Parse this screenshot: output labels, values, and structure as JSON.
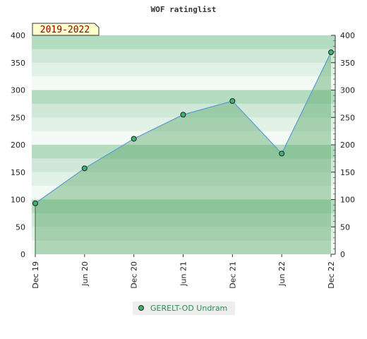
{
  "chart_data": {
    "type": "area",
    "title": "WOF ratinglist",
    "period_badge": "2019-2022",
    "categories": [
      "Dec 19",
      "Jun 20",
      "Dec 20",
      "Jun 21",
      "Dec 21",
      "Jun 22",
      "Dec 22"
    ],
    "series": [
      {
        "name": "GERELT-OD Undram",
        "values": [
          93,
          157,
          211,
          255,
          280,
          184,
          369
        ]
      }
    ],
    "ylim": [
      0,
      400
    ],
    "yticks": [
      0,
      50,
      100,
      150,
      200,
      250,
      300,
      350,
      400
    ],
    "y_axis_left": true,
    "y_axis_right": true,
    "legend_position": "bottom-center",
    "colors": {
      "area_fill": "#5aa86a",
      "line": "#5b9bd5",
      "marker_fill": "#3cb371",
      "badge_bg": "#ffffcc",
      "legend_text": "#2e8b57"
    }
  }
}
